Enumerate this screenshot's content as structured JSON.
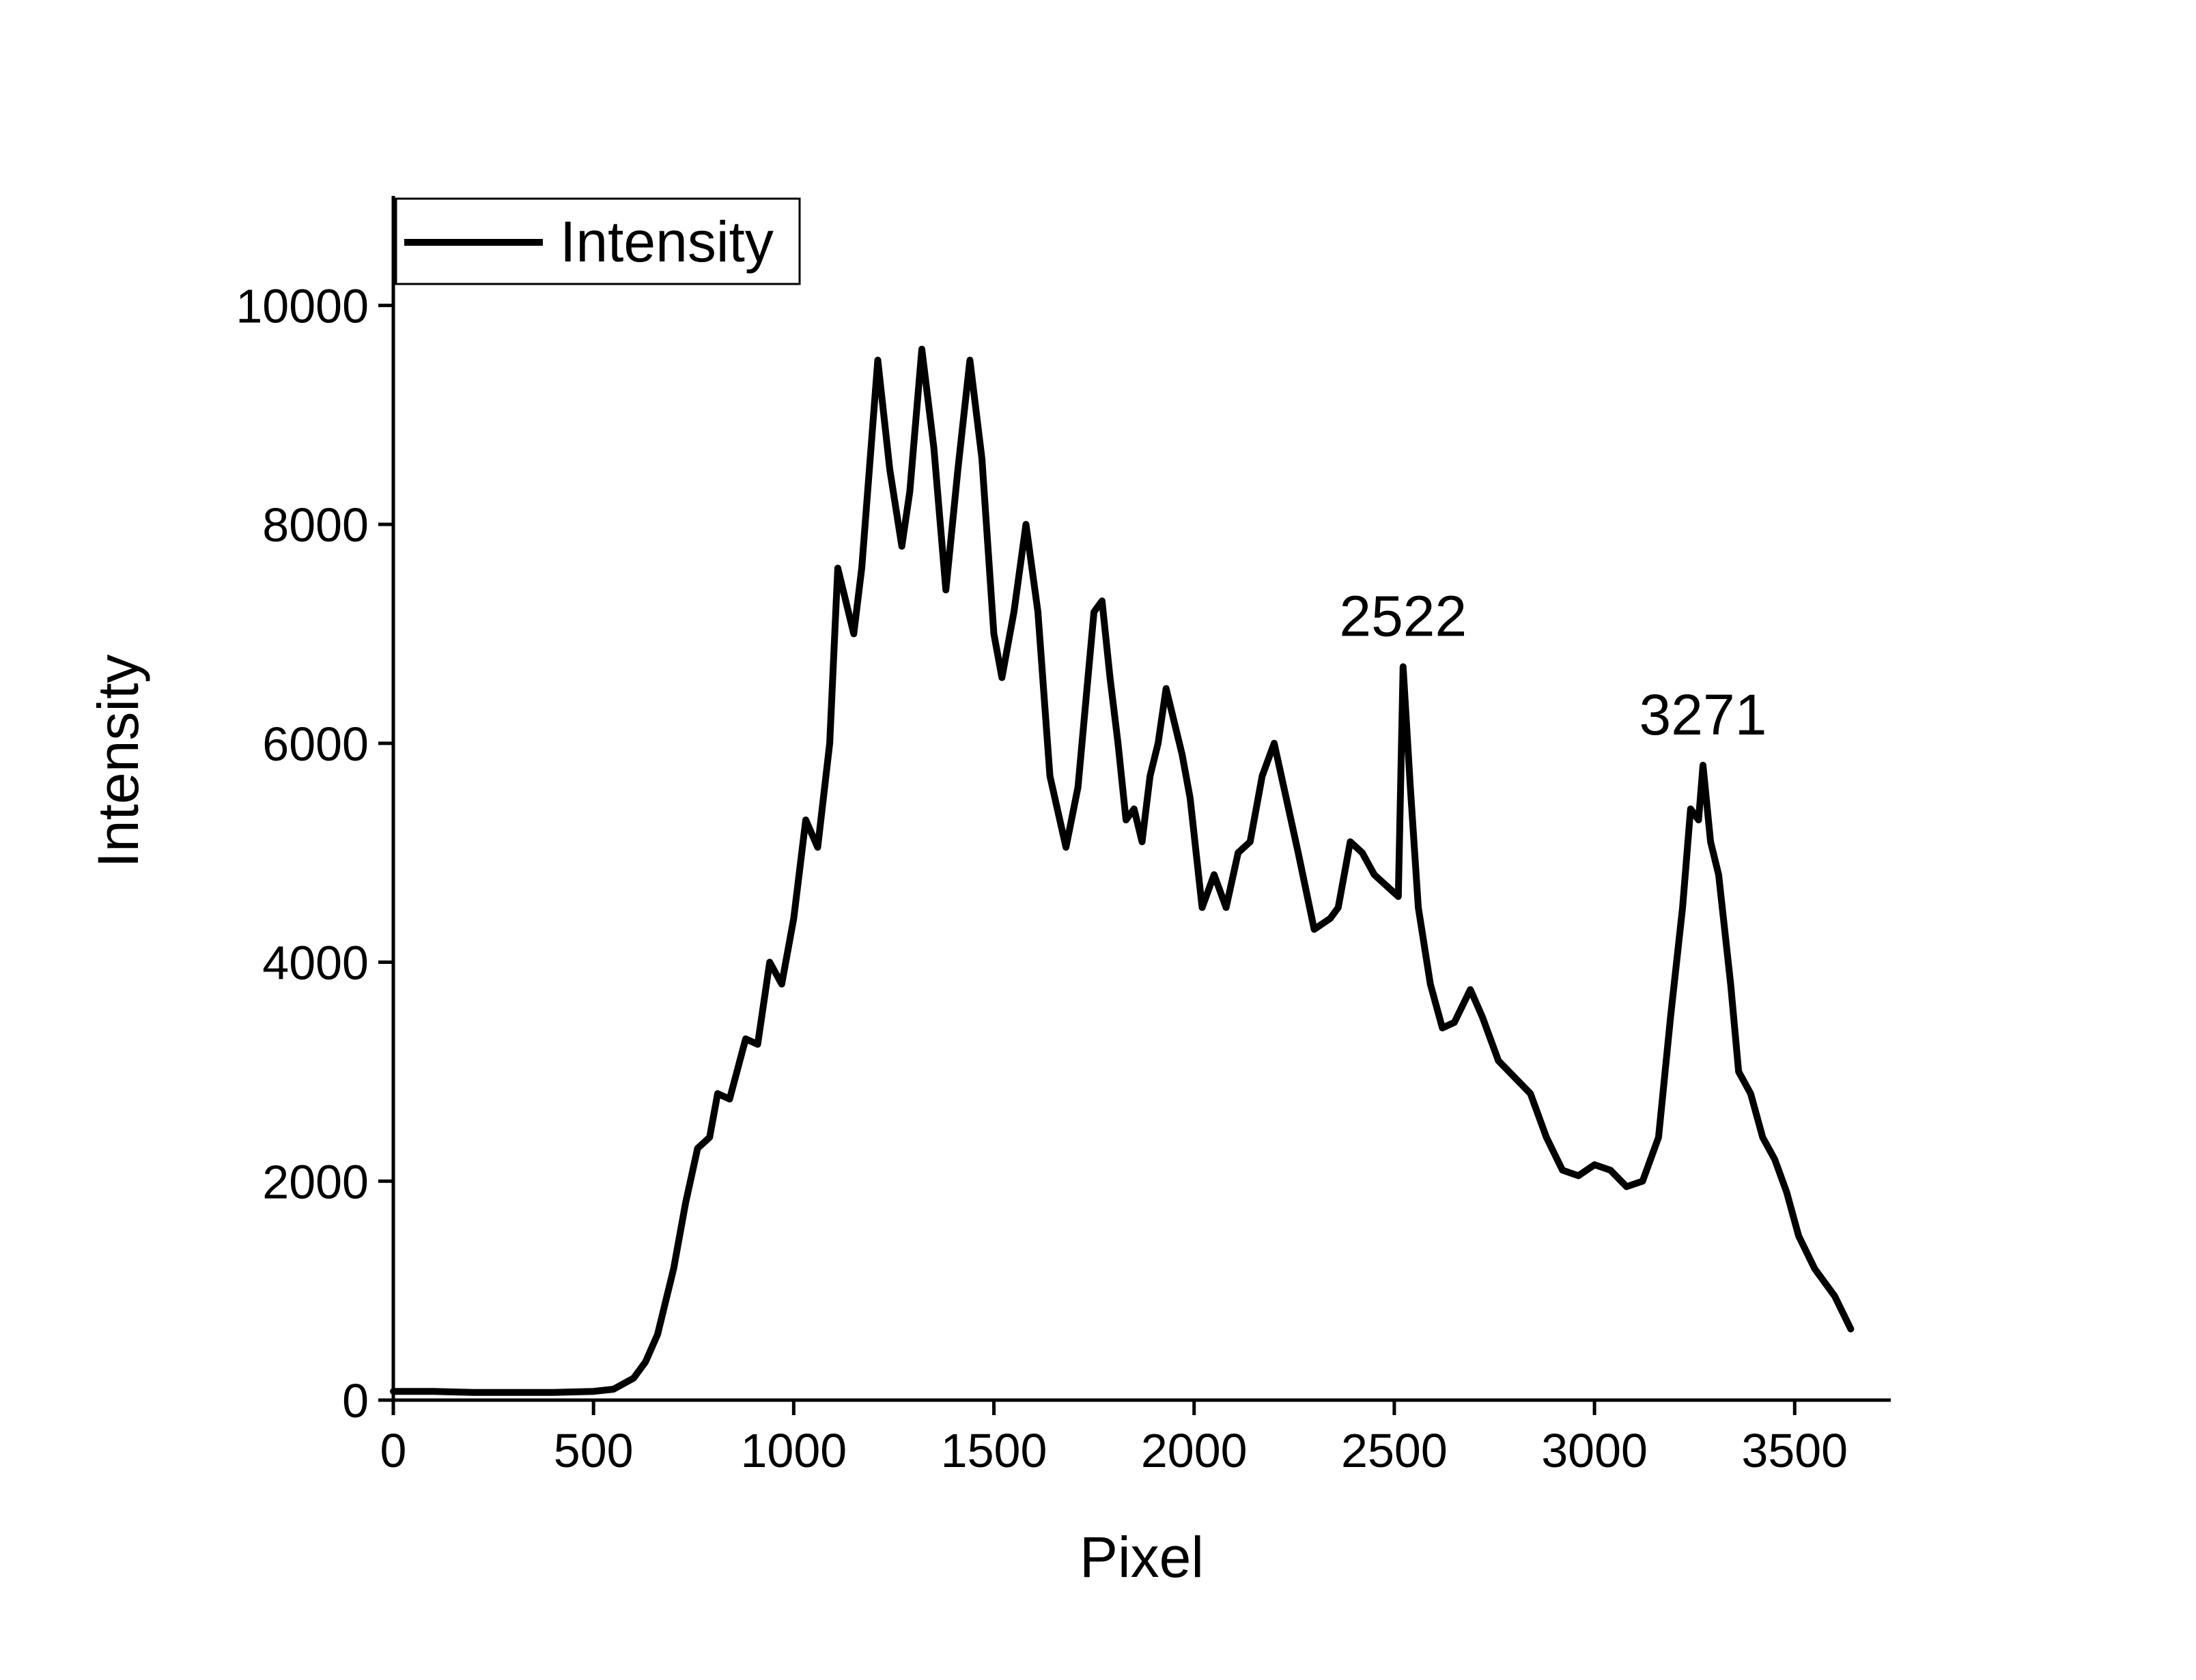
{
  "chart_data": {
    "type": "line",
    "xlabel": "Pixel",
    "ylabel": "Intensity",
    "xlim": [
      0,
      3740
    ],
    "ylim": [
      0,
      11000
    ],
    "xticks": [
      0,
      500,
      1000,
      1500,
      2000,
      2500,
      3000,
      3500
    ],
    "yticks": [
      0,
      2000,
      4000,
      6000,
      8000,
      10000
    ],
    "legend": "upper left",
    "annotations": [
      "2522",
      "3271"
    ],
    "series": [
      {
        "name": "Intensity",
        "color": "#000000",
        "x": [
          0,
          100,
          200,
          300,
          400,
          500,
          550,
          600,
          630,
          660,
          700,
          730,
          760,
          790,
          810,
          840,
          880,
          910,
          940,
          970,
          1000,
          1030,
          1060,
          1090,
          1110,
          1150,
          1170,
          1210,
          1240,
          1270,
          1290,
          1320,
          1350,
          1380,
          1410,
          1440,
          1470,
          1500,
          1520,
          1550,
          1580,
          1610,
          1640,
          1680,
          1710,
          1750,
          1770,
          1790,
          1810,
          1830,
          1850,
          1870,
          1890,
          1910,
          1930,
          1950,
          1970,
          1990,
          2020,
          2050,
          2080,
          2110,
          2140,
          2170,
          2200,
          2230,
          2260,
          2300,
          2340,
          2360,
          2390,
          2420,
          2450,
          2480,
          2510,
          2522,
          2540,
          2560,
          2590,
          2620,
          2650,
          2690,
          2720,
          2760,
          2800,
          2840,
          2880,
          2920,
          2960,
          3000,
          3040,
          3080,
          3120,
          3160,
          3190,
          3220,
          3240,
          3260,
          3271,
          3290,
          3310,
          3340,
          3360,
          3390,
          3420,
          3450,
          3480,
          3510,
          3550,
          3600,
          3640
        ],
        "values": [
          80,
          80,
          70,
          70,
          70,
          80,
          100,
          200,
          350,
          600,
          1200,
          1800,
          2300,
          2400,
          2800,
          2750,
          3300,
          3250,
          4000,
          3800,
          4400,
          5300,
          5050,
          6000,
          7600,
          7000,
          7600,
          9500,
          8500,
          7800,
          8300,
          9600,
          8700,
          7400,
          8500,
          9500,
          8600,
          7000,
          6600,
          7200,
          8000,
          7200,
          5700,
          5050,
          5600,
          7200,
          7300,
          6600,
          6000,
          5300,
          5400,
          5100,
          5700,
          6000,
          6500,
          6200,
          5900,
          5500,
          4500,
          4800,
          4500,
          5000,
          5100,
          5700,
          6000,
          5500,
          5000,
          4300,
          4400,
          4500,
          5100,
          5000,
          4800,
          4700,
          4600,
          6700,
          5600,
          4500,
          3800,
          3400,
          3450,
          3750,
          3500,
          3100,
          2950,
          2800,
          2400,
          2100,
          2050,
          2150,
          2100,
          1950,
          2000,
          2400,
          3500,
          4500,
          5400,
          5300,
          5800,
          5100,
          4800,
          3800,
          3000,
          2800,
          2400,
          2200,
          1900,
          1500,
          1200,
          950,
          650
        ]
      }
    ]
  }
}
